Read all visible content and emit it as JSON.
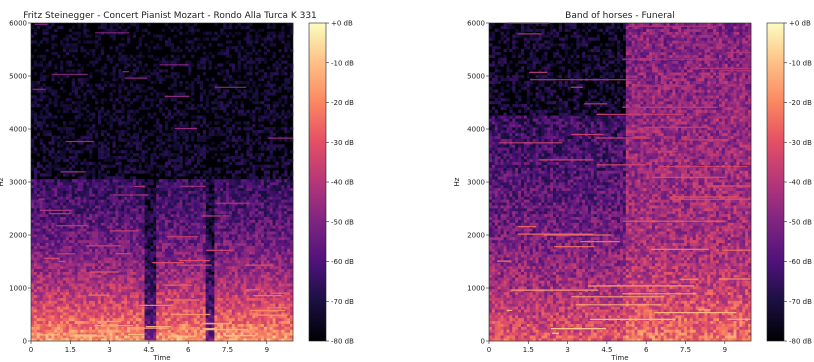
{
  "chart_data": [
    {
      "type": "heatmap",
      "title": "Fritz Steinegger - Concert Pianist Mozart - Rondo Alla Turca K 331",
      "xlabel": "Time",
      "ylabel": "Hz",
      "xlim": [
        0,
        10
      ],
      "ylim": [
        0,
        6000
      ],
      "x_ticks": [
        0,
        1.5,
        3,
        4.5,
        6,
        7.5,
        9
      ],
      "x_tick_labels": [
        "0",
        "1.5",
        "3",
        "4.5",
        "6",
        "7.5",
        "9"
      ],
      "y_ticks": [
        0,
        1000,
        2000,
        3000,
        4000,
        5000,
        6000
      ],
      "y_tick_labels": [
        "0",
        "1000",
        "2000",
        "3000",
        "4000",
        "5000",
        "6000"
      ],
      "colorbar": {
        "range_db": [
          -80,
          0
        ],
        "ticks": [
          0,
          -10,
          -20,
          -30,
          -40,
          -50,
          -60,
          -70,
          -80
        ],
        "tick_labels": [
          "+0 dB",
          "-10 dB",
          "-20 dB",
          "-30 dB",
          "-40 dB",
          "-50 dB",
          "-60 dB",
          "-70 dB",
          "-80 dB"
        ],
        "colormap": "magma"
      },
      "energy_profile": {
        "description": "dense energy below ~3000 Hz; strongest bands below ~1200 Hz; sparse harmonics up to ~5800 Hz; two quiet vertical gaps near t=4.5 and t=6.8",
        "max_freq_hz": 6000
      }
    },
    {
      "type": "heatmap",
      "title": "Band of horses - Funeral",
      "xlabel": "Time",
      "ylabel": "Hz",
      "xlim": [
        0,
        10
      ],
      "ylim": [
        0,
        6000
      ],
      "x_ticks": [
        0,
        1.5,
        3,
        4.5,
        6,
        7.5,
        9
      ],
      "x_tick_labels": [
        "0",
        "1.5",
        "3",
        "4.5",
        "6",
        "7.5",
        "9"
      ],
      "y_ticks": [
        0,
        1000,
        2000,
        3000,
        4000,
        5000,
        6000
      ],
      "y_tick_labels": [
        "0",
        "1000",
        "2000",
        "3000",
        "4000",
        "5000",
        "6000"
      ],
      "colorbar": {
        "range_db": [
          -80,
          0
        ],
        "ticks": [
          0,
          -10,
          -20,
          -30,
          -40,
          -50,
          -60,
          -70,
          -80
        ],
        "tick_labels": [
          "+0 dB",
          "-10 dB",
          "-20 dB",
          "-30 dB",
          "-40 dB",
          "-50 dB",
          "-60 dB",
          "-70 dB",
          "-80 dB"
        ],
        "colormap": "magma"
      },
      "energy_profile": {
        "description": "strong horizontal harmonic lines across whole range; energy rises sharply after t=5.2 filling up to 6000 Hz",
        "max_freq_hz": 6000
      }
    }
  ]
}
